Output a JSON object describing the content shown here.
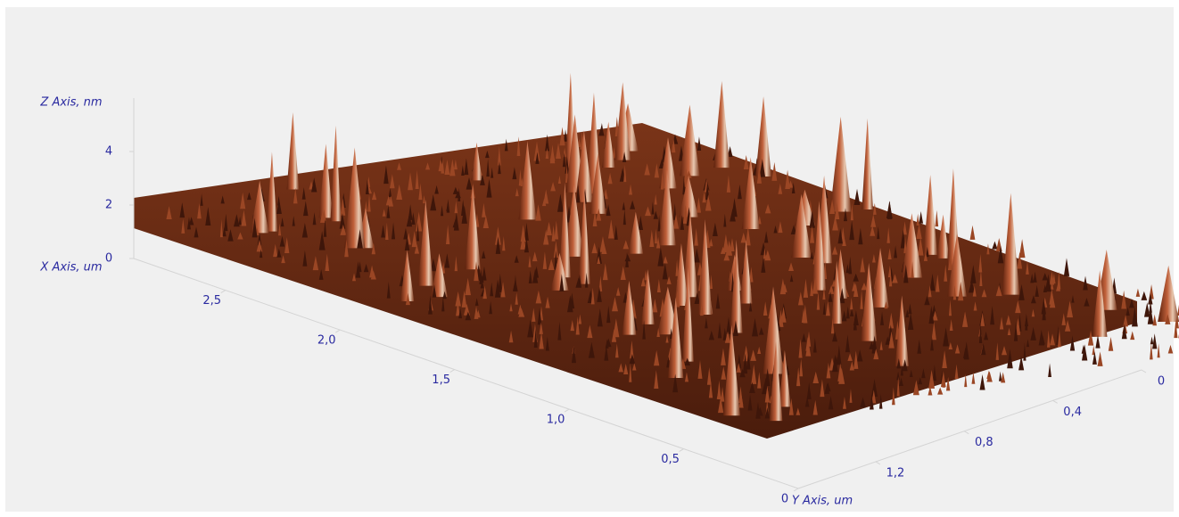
{
  "chart_data": {
    "type": "surface3d",
    "x_label": "X Axis, um",
    "y_label": "Y Axis, um",
    "z_label": "Z Axis, nm",
    "xlim": [
      0,
      2.9
    ],
    "xticks": [
      0,
      {
        "value": 0.5,
        "label": "0,5"
      },
      {
        "value": 1.0,
        "label": "1,0"
      },
      {
        "value": 1.5,
        "label": "1,5"
      },
      {
        "value": 2.0,
        "label": "2,0"
      },
      {
        "value": 2.5,
        "label": "2,5"
      }
    ],
    "ylim": [
      0,
      1.55
    ],
    "yticks": [
      0,
      {
        "value": 0.4,
        "label": "0,4"
      },
      {
        "value": 0.8,
        "label": "0,8"
      },
      {
        "value": 1.2,
        "label": "1,2"
      }
    ],
    "zlim": [
      0,
      6
    ],
    "zticks": [
      0,
      2,
      4
    ],
    "color": "#8a3516"
  }
}
